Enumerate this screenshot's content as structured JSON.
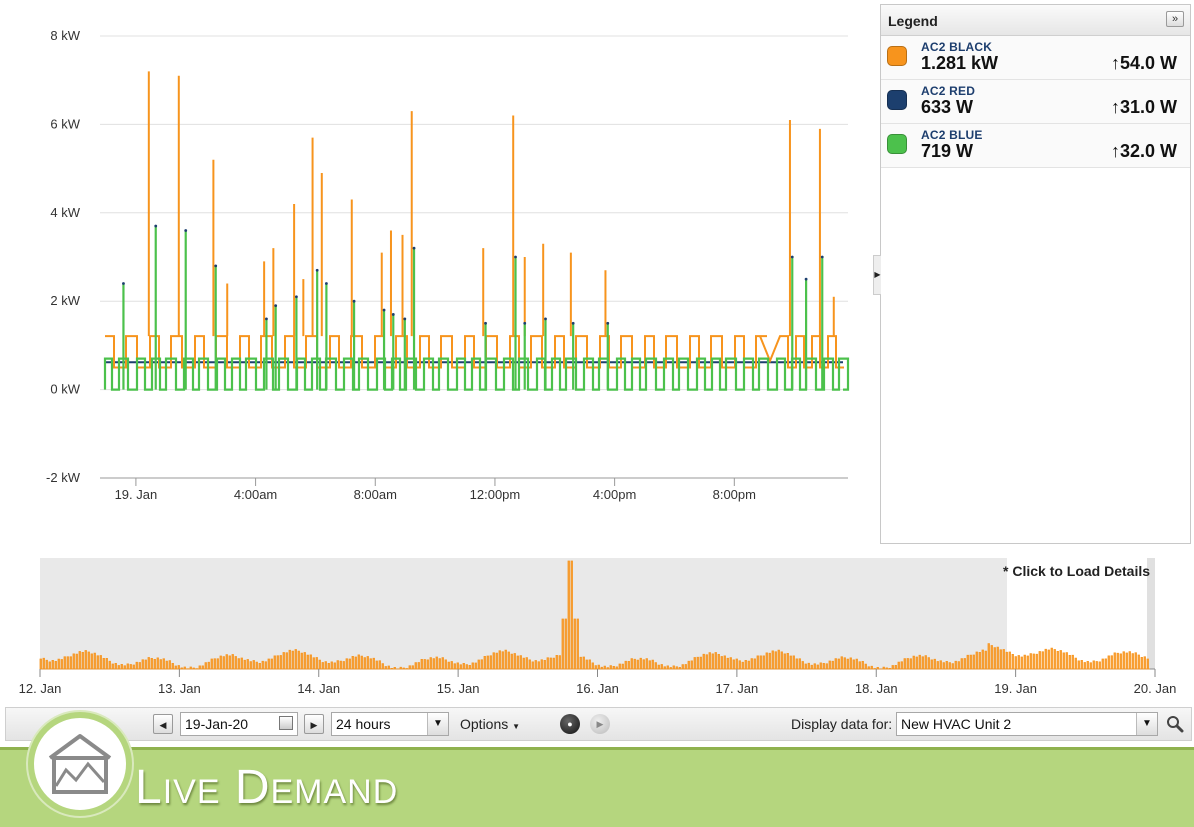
{
  "chart_data": [
    {
      "type": "line",
      "title": "",
      "yunit": "kW",
      "ylim": [
        -2,
        8
      ],
      "yticks": [
        "8 kW",
        "6 kW",
        "4 kW",
        "2 kW",
        "0 kW",
        "-2 kW"
      ],
      "xticks": [
        "19. Jan",
        "4:00am",
        "8:00am",
        "12:00pm",
        "4:00pm",
        "8:00pm"
      ],
      "x_range_hours": [
        -1.2,
        23.8
      ],
      "grid": true,
      "series": [
        {
          "name": "AC2 BLACK",
          "color": "#f7941d",
          "base_kw": 1.21,
          "spikes": [
            [
              0.3,
              1.2
            ],
            [
              1.9,
              7.2
            ],
            [
              3.2,
              7.1
            ],
            [
              4.7,
              5.2
            ],
            [
              5.3,
              2.4
            ],
            [
              6.9,
              2.9
            ],
            [
              7.3,
              3.2
            ],
            [
              8.2,
              4.2
            ],
            [
              8.6,
              2.5
            ],
            [
              9.0,
              5.7
            ],
            [
              9.4,
              4.9
            ],
            [
              10.7,
              4.3
            ],
            [
              12.0,
              3.1
            ],
            [
              12.4,
              3.6
            ],
            [
              12.9,
              3.5
            ],
            [
              13.3,
              6.3
            ],
            [
              16.4,
              3.2
            ],
            [
              17.7,
              6.2
            ],
            [
              18.2,
              3.0
            ],
            [
              19.0,
              3.3
            ],
            [
              20.2,
              3.1
            ],
            [
              21.7,
              2.7
            ],
            [
              29.7,
              6.1
            ],
            [
              31.0,
              5.9
            ],
            [
              31.6,
              2.1
            ]
          ]
        },
        {
          "name": "AC2 RED",
          "color": "#1c3f6e",
          "base_kw": 0.62
        },
        {
          "name": "AC2 BLUE",
          "color": "#4cc14c",
          "base_kw": 0.7,
          "spikes": [
            [
              0.8,
              2.4
            ],
            [
              2.2,
              3.7
            ],
            [
              3.5,
              3.6
            ],
            [
              4.8,
              2.8
            ],
            [
              7.0,
              1.6
            ],
            [
              7.4,
              1.9
            ],
            [
              8.3,
              2.1
            ],
            [
              9.2,
              2.7
            ],
            [
              9.6,
              2.4
            ],
            [
              10.8,
              2.0
            ],
            [
              12.1,
              1.8
            ],
            [
              12.5,
              1.7
            ],
            [
              13.0,
              1.6
            ],
            [
              13.4,
              3.2
            ],
            [
              16.5,
              1.5
            ],
            [
              17.8,
              3.0
            ],
            [
              18.2,
              1.5
            ],
            [
              19.1,
              1.6
            ],
            [
              20.3,
              1.5
            ],
            [
              21.8,
              1.5
            ],
            [
              29.8,
              3.0
            ],
            [
              30.4,
              2.5
            ],
            [
              31.1,
              3.0
            ]
          ]
        }
      ]
    },
    {
      "type": "area",
      "title": "",
      "xticks": [
        "12. Jan",
        "13. Jan",
        "14. Jan",
        "15. Jan",
        "16. Jan",
        "17. Jan",
        "18. Jan",
        "19. Jan",
        "20. Jan"
      ],
      "series": [
        {
          "name": "AC2 BLACK",
          "color": "#f7941d"
        }
      ],
      "peak_day": 15.8,
      "note": "* Click to Load Details"
    }
  ],
  "legend": {
    "title": "Legend",
    "collapse_icon": "»",
    "items": [
      {
        "name": "AC2 BLACK",
        "value": "1.281 kW",
        "delta": "↑54.0 W",
        "color": "#f7941d"
      },
      {
        "name": "AC2 RED",
        "value": "633 W",
        "delta": "↑31.0 W",
        "color": "#1c3f6e"
      },
      {
        "name": "AC2 BLUE",
        "value": "719 W",
        "delta": "↑32.0 W",
        "color": "#4cc14c"
      }
    ]
  },
  "toolbar": {
    "prev_icon": "◀",
    "date": "19-Jan-20",
    "next_icon": "▶",
    "range": "24 hours",
    "options_label": "Options",
    "display_for_label": "Display data for:",
    "display_for_value": "New HVAC Unit 2"
  },
  "banner": {
    "title": "Live Demand"
  }
}
